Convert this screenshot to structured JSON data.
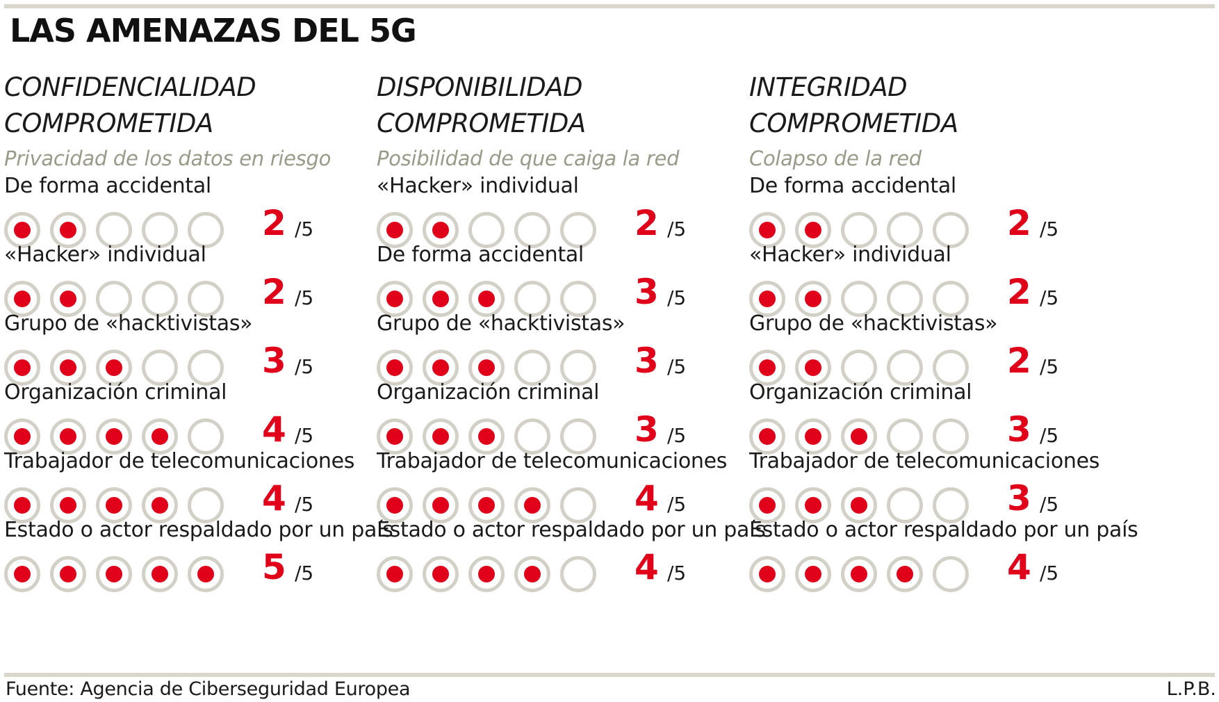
{
  "title": "LAS AMENAZAS DEL 5G",
  "source": "Fuente: Agencia de Ciberseguridad Europea",
  "credit": "L.P.B.",
  "max_score": 5,
  "outof_label": "/5",
  "colors": {
    "accent": "#e0001a",
    "ring": "#d3d1c7",
    "rule": "#d9d7cc",
    "subtitle": "#9a9a8a"
  },
  "chart_data": {
    "type": "table",
    "title": "LAS AMENAZAS DEL 5G",
    "scale_max": 5,
    "panels": [
      {
        "heading": [
          "CONFIDENCIALIDAD",
          "COMPROMETIDA"
        ],
        "subtitle": "Privacidad de los datos en riesgo",
        "items": [
          {
            "label": "De forma accidental",
            "value": 2,
            "value_label": "2"
          },
          {
            "label": "«Hacker» individual",
            "value": 2,
            "value_label": "2"
          },
          {
            "label": "Grupo de «hacktivistas»",
            "value": 3,
            "value_label": "3"
          },
          {
            "label": "Organización criminal",
            "value": 4,
            "value_label": "4"
          },
          {
            "label": "Trabajador de telecomunicaciones",
            "value": 4,
            "value_label": "4"
          },
          {
            "label": "Estado o actor respaldado por un país",
            "value": 5,
            "value_label": "5"
          }
        ]
      },
      {
        "heading": [
          "DISPONIBILIDAD",
          "COMPROMETIDA"
        ],
        "subtitle": "Posibilidad de que caiga la red",
        "items": [
          {
            "label": "«Hacker» individual",
            "value": 2,
            "value_label": "2"
          },
          {
            "label": "De forma accidental",
            "value": 3,
            "value_label": "3"
          },
          {
            "label": "Grupo de «hacktivistas»",
            "value": 3,
            "value_label": "3"
          },
          {
            "label": "Organización criminal",
            "value": 3,
            "value_label": "3"
          },
          {
            "label": "Trabajador de telecomunicaciones",
            "value": 4,
            "value_label": "4"
          },
          {
            "label": "Estado o actor respaldado por un país",
            "value": 4,
            "value_label": "4"
          }
        ]
      },
      {
        "heading": [
          "INTEGRIDAD",
          "COMPROMETIDA"
        ],
        "subtitle": "Colapso de la red",
        "items": [
          {
            "label": "De forma accidental",
            "value": 2,
            "value_label": "2"
          },
          {
            "label": "«Hacker» individual",
            "value": 2,
            "value_label": "2"
          },
          {
            "label": "Grupo de «hacktivistas»",
            "value": 2,
            "value_label": "2"
          },
          {
            "label": "Organización criminal",
            "value": 3,
            "value_label": "3"
          },
          {
            "label": "Trabajador de telecomunicaciones",
            "value": 3,
            "value_label": "3"
          },
          {
            "label": "Estado o actor respaldado por un país",
            "value": 4,
            "value_label": "4"
          }
        ]
      }
    ]
  }
}
